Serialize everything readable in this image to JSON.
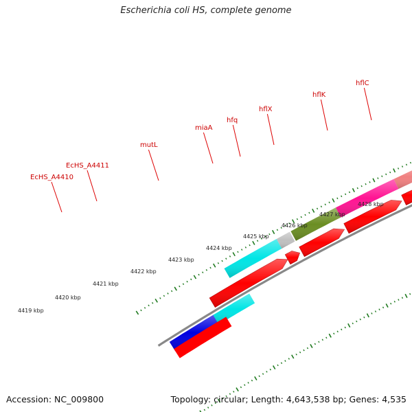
{
  "title": "Escherichia coli HS, complete genome",
  "footer": {
    "accession": "Accession: NC_009800",
    "summary": "Topology: circular; Length: 4,643,538 bp; Genes: 4,535"
  },
  "gene_labels": [
    "EcHS_A4410",
    "EcHS_A4411",
    "mutL",
    "miaA",
    "hfq",
    "hflX",
    "hflK",
    "hflC"
  ],
  "kbp_labels": [
    "4419 kbp",
    "4420 kbp",
    "4421 kbp",
    "4422 kbp",
    "4423 kbp",
    "4424 kbp",
    "4425 kbp",
    "4426 kbp",
    "4427 kbp",
    "4428 kbp"
  ],
  "colors": {
    "cds": "#ff0000",
    "backbone": "#888888",
    "tick": "#1f7a1f",
    "label": "#cc0000",
    "segments": [
      "#0000e0",
      "#00e5e5",
      "#c0c0c0",
      "#6b8e23",
      "#ff1493",
      "#f08080",
      "#c0c0c0",
      "#c0c0c0",
      "#bdb76b",
      "#bdb76b",
      "#606060",
      "#00bfff"
    ]
  }
}
